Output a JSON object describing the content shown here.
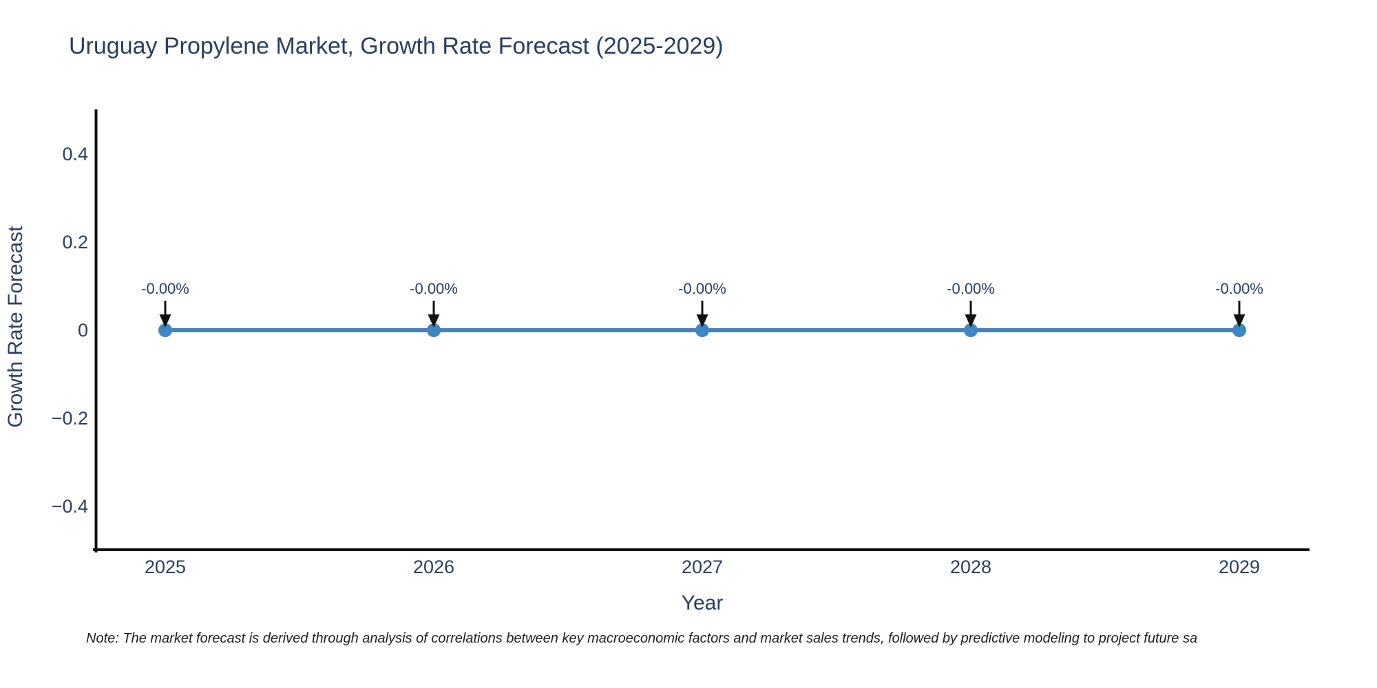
{
  "note": "Note: The market forecast is derived through analysis of correlations between key macroeconomic factors and market sales trends, followed by predictive modeling to project future sa",
  "colors": {
    "title_text": "#2a3f5f",
    "tick_text": "#2a3f5f",
    "axis_line": "#111111",
    "series_line": "#4e7fae",
    "marker": "#3f87c0",
    "annotation_text": "#2a3f5f",
    "arrow": "#111111",
    "note_text": "#1f1f1f",
    "background": "#ffffff"
  },
  "chart_data": {
    "type": "line",
    "title": "Uruguay Propylene Market, Growth Rate Forecast (2025-2029)",
    "xlabel": "Year",
    "ylabel": "Growth Rate Forecast",
    "x": [
      2025,
      2026,
      2027,
      2028,
      2029
    ],
    "series": [
      {
        "name": "Growth Rate Forecast",
        "values": [
          0,
          0,
          0,
          0,
          0
        ],
        "point_labels": [
          "-0.00%",
          "-0.00%",
          "-0.00%",
          "-0.00%",
          "-0.00%"
        ]
      }
    ],
    "ylim": [
      -0.5,
      0.5
    ],
    "yticks": {
      "values": [
        0.4,
        0.2,
        0,
        -0.2,
        -0.4
      ],
      "labels": [
        "0.4",
        "0.2",
        "0",
        "−0.2",
        "−0.4"
      ]
    },
    "xticks": {
      "labels": [
        "2025",
        "2026",
        "2027",
        "2028",
        "2029"
      ]
    },
    "grid": false,
    "legend": false,
    "annotations_arrow_down": true
  }
}
